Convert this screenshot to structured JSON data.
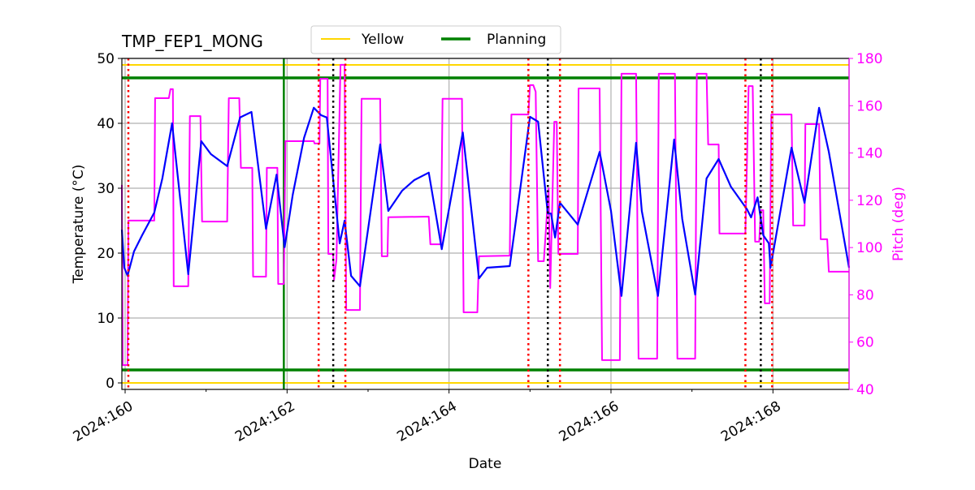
{
  "chart_data": {
    "type": "line",
    "title": "TMP_FEP1_MONG",
    "xlabel": "Date",
    "ylabel": "Temperature (°C)",
    "y2label": "Pitch (deg)",
    "xlim": [
      159.96,
      168.94
    ],
    "ylim": [
      -1,
      50
    ],
    "y2lim": [
      40,
      180
    ],
    "grid": true,
    "legend_placement": "top-center",
    "x_ticks": [
      {
        "value": 160,
        "label": "2024:160"
      },
      {
        "value": 162,
        "label": "2024:162"
      },
      {
        "value": 164,
        "label": "2024:164"
      },
      {
        "value": 166,
        "label": "2024:166"
      },
      {
        "value": 168,
        "label": "2024:168"
      }
    ],
    "x_minor_ticks": [
      161,
      163,
      165,
      167
    ],
    "y_ticks": [
      0,
      10,
      20,
      30,
      40,
      50
    ],
    "y2_ticks": [
      40,
      60,
      80,
      100,
      120,
      140,
      160,
      180
    ],
    "colors": {
      "temperature": "#0000ff",
      "pitch": "#ff00ff",
      "yellow": "#ffd700",
      "planning": "#008000",
      "red_marker": "#ff0000",
      "black_marker": "#000000",
      "grid": "#b0b0b0",
      "y2axis": "#ff00ff"
    },
    "legend": [
      {
        "name": "Yellow",
        "color": "#ffd700"
      },
      {
        "name": "Planning",
        "color": "#008000"
      }
    ],
    "limit_lines": [
      {
        "name": "Yellow",
        "values": [
          49,
          0
        ]
      },
      {
        "name": "Planning",
        "values": [
          47,
          2
        ]
      }
    ],
    "planning_vertical_line": 161.96,
    "red_dotted_lines": [
      160.04,
      162.39,
      162.72,
      164.98,
      165.37,
      167.66,
      167.99
    ],
    "black_dotted_lines": [
      162.57,
      165.22,
      167.85
    ],
    "temperature": {
      "x": [
        159.96,
        159.99,
        160.03,
        160.11,
        160.21,
        160.36,
        160.46,
        160.58,
        160.78,
        160.94,
        161.06,
        161.26,
        161.42,
        161.56,
        161.74,
        161.87,
        161.97,
        162.07,
        162.21,
        162.33,
        162.42,
        162.49,
        162.65,
        162.71,
        162.79,
        162.9,
        163.15,
        163.25,
        163.42,
        163.57,
        163.75,
        163.91,
        164.17,
        164.37,
        164.47,
        164.75,
        165.0,
        165.1,
        165.22,
        165.26,
        165.31,
        165.37,
        165.59,
        165.86,
        166.0,
        166.13,
        166.31,
        166.38,
        166.58,
        166.78,
        166.88,
        167.04,
        167.18,
        167.33,
        167.48,
        167.68,
        167.73,
        167.81,
        167.88,
        167.95,
        167.97,
        168.23,
        168.39,
        168.57,
        168.69,
        168.94
      ],
      "y": [
        23.6,
        17.75,
        16.5,
        20.25,
        22.75,
        26.25,
        31.5,
        40.0,
        16.75,
        37.25,
        35.25,
        33.4,
        40.9,
        41.75,
        23.75,
        32.1,
        20.9,
        29.0,
        37.75,
        42.4,
        41.25,
        40.9,
        21.5,
        25.0,
        16.5,
        14.9,
        36.75,
        26.5,
        29.6,
        31.25,
        32.4,
        20.6,
        38.6,
        16.1,
        17.75,
        18.0,
        41.0,
        40.25,
        26.1,
        26.1,
        22.4,
        27.75,
        24.4,
        35.6,
        26.5,
        13.4,
        37.0,
        26.5,
        13.4,
        37.5,
        25.25,
        13.6,
        31.5,
        34.5,
        30.25,
        26.75,
        25.5,
        28.6,
        22.75,
        21.5,
        17.75,
        36.25,
        27.75,
        42.4,
        35.6,
        17.75
      ]
    },
    "pitch": {
      "x": [
        159.96,
        159.97,
        160.03,
        160.04,
        160.23,
        160.36,
        160.37,
        160.54,
        160.56,
        160.59,
        160.6,
        160.78,
        160.8,
        160.93,
        160.95,
        161.26,
        161.28,
        161.41,
        161.43,
        161.57,
        161.58,
        161.74,
        161.75,
        161.88,
        161.89,
        161.96,
        161.98,
        162.33,
        162.34,
        162.4,
        162.41,
        162.5,
        162.51,
        162.57,
        162.58,
        162.61,
        162.66,
        162.71,
        162.73,
        162.9,
        162.92,
        163.15,
        163.17,
        163.24,
        163.25,
        163.75,
        163.77,
        163.9,
        163.92,
        164.16,
        164.18,
        164.35,
        164.37,
        164.75,
        164.77,
        164.98,
        165.0,
        165.04,
        165.07,
        165.1,
        165.17,
        165.19,
        165.23,
        165.25,
        165.3,
        165.33,
        165.35,
        165.59,
        165.6,
        165.86,
        165.89,
        166.11,
        166.13,
        166.31,
        166.34,
        166.57,
        166.59,
        166.79,
        166.82,
        167.04,
        167.06,
        167.18,
        167.2,
        167.33,
        167.34,
        167.66,
        167.7,
        167.75,
        167.78,
        167.83,
        167.85,
        167.88,
        167.9,
        167.96,
        167.98,
        168.23,
        168.25,
        168.39,
        168.4,
        168.57,
        168.59,
        168.67,
        168.69,
        168.94
      ],
      "y": [
        126.5,
        50.3,
        50.3,
        111.4,
        111.4,
        111.4,
        163.2,
        163.2,
        167.0,
        167.0,
        83.6,
        83.6,
        155.6,
        155.6,
        111.0,
        111.0,
        163.2,
        163.2,
        133.7,
        133.7,
        87.7,
        87.7,
        133.7,
        133.7,
        84.6,
        84.6,
        145.0,
        145.0,
        144.0,
        144.0,
        171.4,
        171.4,
        97.3,
        97.3,
        86.3,
        94.9,
        177.3,
        177.3,
        73.6,
        73.6,
        162.9,
        162.9,
        96.3,
        96.3,
        112.8,
        113.1,
        101.4,
        101.4,
        162.9,
        162.9,
        72.6,
        72.6,
        96.3,
        96.6,
        156.3,
        156.3,
        168.7,
        168.7,
        165.9,
        94.2,
        94.2,
        104.5,
        125.1,
        82.9,
        153.2,
        153.2,
        97.3,
        97.3,
        167.3,
        167.3,
        52.4,
        52.4,
        173.5,
        173.5,
        53.0,
        53.0,
        173.5,
        173.5,
        53.0,
        53.0,
        173.5,
        173.5,
        143.6,
        143.6,
        105.9,
        105.9,
        168.3,
        168.3,
        102.5,
        102.5,
        115.8,
        115.8,
        76.4,
        76.4,
        156.3,
        156.3,
        109.3,
        109.3,
        152.2,
        152.2,
        103.5,
        103.5,
        89.8,
        89.8
      ]
    }
  }
}
